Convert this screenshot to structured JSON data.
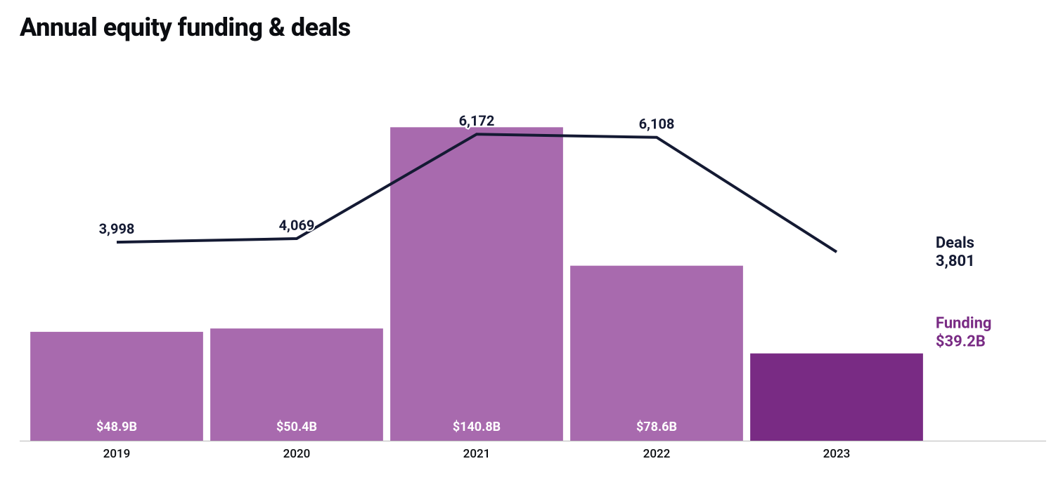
{
  "chart": {
    "title": "Annual equity funding & deals",
    "type": "combo-bar-line",
    "background_color": "#ffffff",
    "categories": [
      "2019",
      "2020",
      "2021",
      "2022",
      "2023"
    ],
    "bar_series": {
      "name": "Funding",
      "values": [
        48.9,
        50.4,
        140.8,
        78.6,
        39.2
      ],
      "value_labels": [
        "$48.9B",
        "$50.4B",
        "$140.8B",
        "$78.6B",
        "$39.2B"
      ],
      "colors": [
        "#a86aae",
        "#a86aae",
        "#a86aae",
        "#a86aae",
        "#792b84"
      ],
      "ymax": 145,
      "bar_width_ratio": 0.96,
      "value_label_color": "#ffffff",
      "value_label_fontsize": 18
    },
    "line_series": {
      "name": "Deals",
      "values": [
        3998,
        4069,
        6172,
        6108,
        3801
      ],
      "value_labels": [
        "3,998",
        "4,069",
        "6,172",
        "6,108",
        "3,801"
      ],
      "ymax": 6500,
      "color": "#141a33",
      "stroke_width": 4,
      "value_label_color": "#141a33",
      "value_label_fontsize": 20,
      "value_label_stroke": "#ffffff"
    },
    "side_labels": {
      "deals": {
        "line1": "Deals",
        "line2": "3,801",
        "color": "#141a33"
      },
      "funding": {
        "line1": "Funding",
        "line2": "$39.2B",
        "color": "#792b84"
      }
    },
    "axis": {
      "baseline_color": "#b9b9b9",
      "x_label_color": "#0b0d11",
      "x_label_fontsize": 17
    }
  }
}
